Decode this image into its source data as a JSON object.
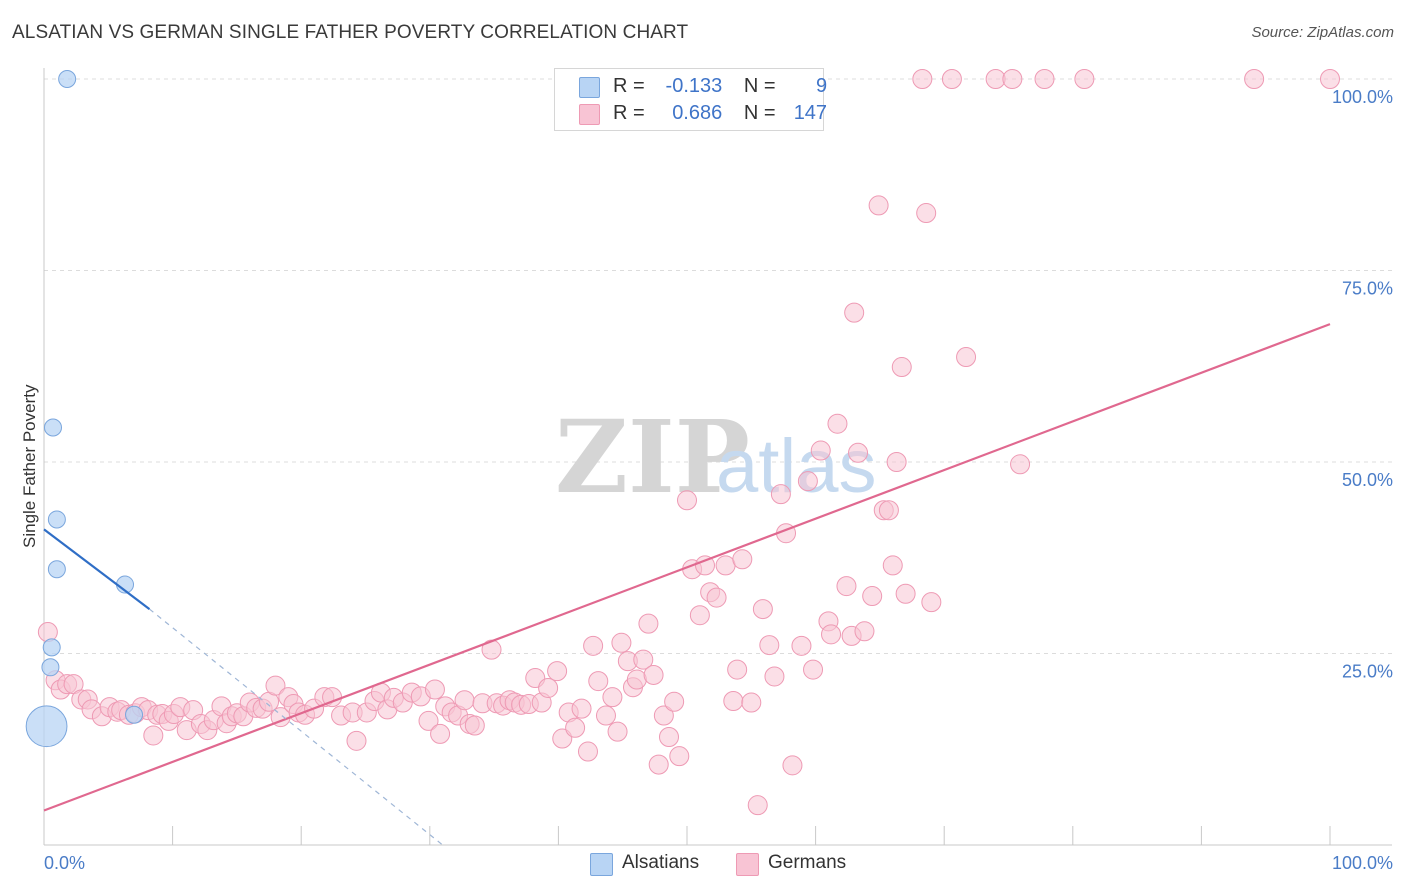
{
  "title": "ALSATIAN VS GERMAN SINGLE FATHER POVERTY CORRELATION CHART",
  "source": "Source: ZipAtlas.com",
  "watermark": {
    "zip": "ZIP",
    "atlas": "atlas"
  },
  "legend": {
    "rows": [
      {
        "r_label": "R =",
        "r_value": "-0.133",
        "n_label": "N =",
        "n_value": "9"
      },
      {
        "r_label": "R =",
        "r_value": "0.686",
        "n_label": "N =",
        "n_value": "147"
      }
    ]
  },
  "bottom_legend": {
    "alsatians": "Alsatians",
    "germans": "Germans"
  },
  "colors": {
    "alsatian_fill": "#b8d4f4",
    "alsatian_stroke": "#7aa6dd",
    "alsatian_line": "#2f6ec6",
    "german_fill": "#f8c4d4",
    "german_stroke": "#ee9ab4",
    "german_line": "#e0688f",
    "grid": "#dcdcdc",
    "tick_text": "#4a7cc7"
  },
  "chart_data": {
    "type": "scatter",
    "title": "ALSATIAN VS GERMAN SINGLE FATHER POVERTY CORRELATION CHART",
    "xlabel": "",
    "ylabel": "Single Father Poverty",
    "xlim": [
      0,
      100
    ],
    "ylim": [
      0,
      100
    ],
    "x_tick_labels": [
      "0.0%",
      "100.0%"
    ],
    "y_tick_labels": [
      "25.0%",
      "50.0%",
      "75.0%",
      "100.0%"
    ],
    "y_ticks": [
      25,
      50,
      75,
      100
    ],
    "grid": true,
    "series": [
      {
        "name": "Alsatians",
        "r": -0.133,
        "n": 9,
        "points": [
          [
            1.8,
            100
          ],
          [
            0.7,
            54.5
          ],
          [
            1.0,
            42.5
          ],
          [
            1.0,
            36
          ],
          [
            6.3,
            34
          ],
          [
            0.6,
            25.8
          ],
          [
            0.5,
            23.2
          ],
          [
            7.0,
            17
          ],
          [
            0.2,
            15.5
          ]
        ],
        "sizes": [
          1,
          1,
          1,
          1,
          1,
          1,
          1,
          1,
          2.4
        ],
        "trend": {
          "x0": 0,
          "y0": 41.2,
          "x1": 8.2,
          "y1": 30.8,
          "dash_x1": 31,
          "dash_y1": 0
        }
      },
      {
        "name": "Germans",
        "r": 0.686,
        "n": 147,
        "points": [
          [
            0.3,
            27.8
          ],
          [
            0.9,
            21.5
          ],
          [
            1.3,
            20.3
          ],
          [
            1.8,
            21
          ],
          [
            2.3,
            21
          ],
          [
            2.9,
            19
          ],
          [
            3.4,
            19
          ],
          [
            3.7,
            17.7
          ],
          [
            4.5,
            16.8
          ],
          [
            5.1,
            18
          ],
          [
            5.7,
            17.4
          ],
          [
            6.0,
            17.6
          ],
          [
            6.6,
            17
          ],
          [
            7.1,
            17.2
          ],
          [
            7.6,
            18
          ],
          [
            8.1,
            17.6
          ],
          [
            8.5,
            14.3
          ],
          [
            8.8,
            17
          ],
          [
            9.2,
            17.1
          ],
          [
            9.7,
            16.2
          ],
          [
            10.1,
            17.1
          ],
          [
            10.6,
            18
          ],
          [
            11.1,
            15
          ],
          [
            11.6,
            17.6
          ],
          [
            12.2,
            15.8
          ],
          [
            12.7,
            15
          ],
          [
            13.2,
            16.3
          ],
          [
            13.8,
            18.1
          ],
          [
            14.2,
            15.9
          ],
          [
            14.6,
            16.8
          ],
          [
            15.0,
            17.2
          ],
          [
            15.5,
            16.8
          ],
          [
            16.0,
            18.6
          ],
          [
            16.5,
            17.9
          ],
          [
            17.0,
            17.8
          ],
          [
            17.5,
            18.7
          ],
          [
            18.0,
            20.8
          ],
          [
            18.4,
            16.7
          ],
          [
            19.0,
            19.3
          ],
          [
            19.4,
            18.4
          ],
          [
            19.8,
            17.3
          ],
          [
            20.3,
            17
          ],
          [
            21.0,
            17.8
          ],
          [
            21.8,
            19.3
          ],
          [
            22.4,
            19.3
          ],
          [
            23.1,
            16.9
          ],
          [
            24.0,
            17.3
          ],
          [
            24.3,
            13.6
          ],
          [
            25.1,
            17.3
          ],
          [
            25.7,
            18.8
          ],
          [
            26.2,
            19.9
          ],
          [
            26.7,
            17.7
          ],
          [
            27.2,
            19.2
          ],
          [
            27.9,
            18.6
          ],
          [
            28.6,
            19.9
          ],
          [
            29.3,
            19.4
          ],
          [
            29.9,
            16.2
          ],
          [
            30.4,
            20.3
          ],
          [
            30.8,
            14.5
          ],
          [
            31.2,
            18.1
          ],
          [
            31.7,
            17.3
          ],
          [
            32.2,
            16.9
          ],
          [
            32.7,
            18.9
          ],
          [
            33.1,
            15.8
          ],
          [
            33.5,
            15.6
          ],
          [
            34.1,
            18.5
          ],
          [
            34.8,
            25.5
          ],
          [
            35.2,
            18.5
          ],
          [
            35.7,
            18.2
          ],
          [
            36.2,
            18.9
          ],
          [
            36.6,
            18.6
          ],
          [
            37.1,
            18.3
          ],
          [
            37.7,
            18.4
          ],
          [
            38.2,
            21.8
          ],
          [
            38.7,
            18.6
          ],
          [
            39.2,
            20.5
          ],
          [
            39.9,
            22.7
          ],
          [
            40.3,
            13.9
          ],
          [
            40.8,
            17.3
          ],
          [
            41.3,
            15.3
          ],
          [
            41.8,
            17.8
          ],
          [
            42.3,
            12.2
          ],
          [
            42.7,
            26
          ],
          [
            43.1,
            21.4
          ],
          [
            43.7,
            16.9
          ],
          [
            44.2,
            19.3
          ],
          [
            44.6,
            14.8
          ],
          [
            44.9,
            26.4
          ],
          [
            45.4,
            24.0
          ],
          [
            45.8,
            20.6
          ],
          [
            46.1,
            21.6
          ],
          [
            46.6,
            24.2
          ],
          [
            47.0,
            28.9
          ],
          [
            47.4,
            22.2
          ],
          [
            47.8,
            10.5
          ],
          [
            48.2,
            16.9
          ],
          [
            48.6,
            14.1
          ],
          [
            49.0,
            18.7
          ],
          [
            49.4,
            11.6
          ],
          [
            50.0,
            45
          ],
          [
            50.4,
            36
          ],
          [
            51.0,
            30
          ],
          [
            51.4,
            36.5
          ],
          [
            51.8,
            33
          ],
          [
            52.3,
            32.3
          ],
          [
            53.0,
            36.5
          ],
          [
            53.6,
            18.8
          ],
          [
            53.9,
            22.9
          ],
          [
            54.3,
            37.3
          ],
          [
            55.0,
            18.6
          ],
          [
            55.5,
            5.2
          ],
          [
            55.9,
            30.8
          ],
          [
            56.4,
            26.1
          ],
          [
            56.8,
            22
          ],
          [
            57.3,
            45.8
          ],
          [
            57.7,
            40.7
          ],
          [
            58.2,
            10.4
          ],
          [
            58.9,
            26
          ],
          [
            59.4,
            47.5
          ],
          [
            59.8,
            22.9
          ],
          [
            60.4,
            51.5
          ],
          [
            61.0,
            29.2
          ],
          [
            61.2,
            27.5
          ],
          [
            61.7,
            55
          ],
          [
            62.4,
            33.8
          ],
          [
            62.8,
            27.3
          ],
          [
            63.0,
            69.5
          ],
          [
            63.3,
            51.2
          ],
          [
            63.8,
            27.9
          ],
          [
            64.4,
            32.5
          ],
          [
            64.9,
            83.5
          ],
          [
            65.3,
            43.7
          ],
          [
            65.7,
            43.7
          ],
          [
            66.0,
            36.5
          ],
          [
            66.3,
            50
          ],
          [
            66.7,
            62.4
          ],
          [
            67.0,
            32.8
          ],
          [
            68.3,
            100
          ],
          [
            68.6,
            82.5
          ],
          [
            69.0,
            31.7
          ],
          [
            70.6,
            100
          ],
          [
            71.7,
            63.7
          ],
          [
            74.0,
            100
          ],
          [
            75.3,
            100
          ],
          [
            75.9,
            49.7
          ],
          [
            77.8,
            100
          ],
          [
            80.9,
            100
          ],
          [
            94.1,
            100
          ],
          [
            100.0,
            100
          ]
        ],
        "trend": {
          "x0": 0,
          "y0": 4.5,
          "x1": 100,
          "y1": 68
        }
      }
    ]
  }
}
